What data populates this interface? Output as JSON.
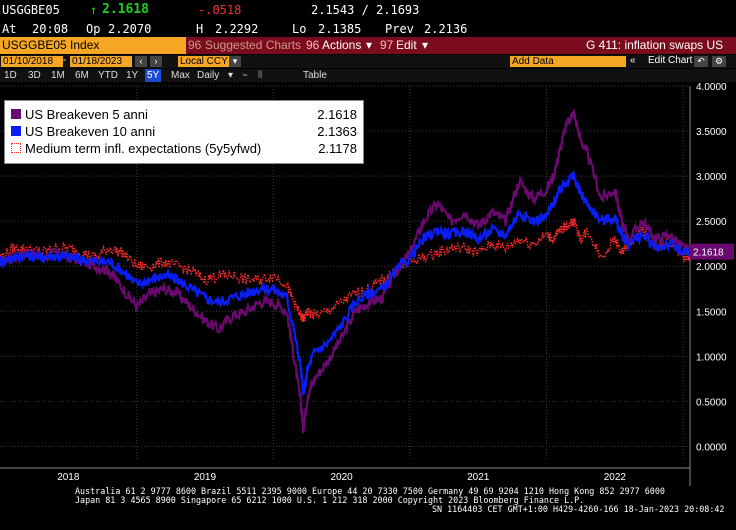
{
  "quote": {
    "ticker": "USGGBE05",
    "arrow": "↑",
    "last": "2.1618",
    "change": "-.0518",
    "bid_ask": "2.1543 / 2.1693",
    "time_label": "At",
    "time": "20:08",
    "open_label": "Op",
    "open": "2.2070",
    "high_label": "H",
    "high": "2.2292",
    "low_label": "Lo",
    "low": "2.1385",
    "prev_label": "Prev",
    "prev": "2.2136"
  },
  "index_bar": {
    "security": "USGGBE05 Index",
    "suggested": "Suggested Charts",
    "suggested_num": "96",
    "actions": "Actions",
    "actions_num": "96",
    "edit": "Edit",
    "edit_num": "97",
    "title": "G 411: inflation swaps US"
  },
  "date_bar": {
    "start": "01/10/2018",
    "end": "01/18/2023",
    "currency": "Local CCY",
    "add_data": "Add Data",
    "edit_chart": "Edit Chart"
  },
  "period_bar": {
    "periods": [
      "1D",
      "3D",
      "1M",
      "6M",
      "YTD",
      "1Y",
      "5Y",
      "Max"
    ],
    "selected": "5Y",
    "frequency": "Daily",
    "table": "Table"
  },
  "colors": {
    "s1": "#6a0a70",
    "s2": "#0b1df5",
    "s3": "#ff2a2a",
    "accent_orange": "#f5a623",
    "brand_red": "#7b0c1e"
  },
  "legend": {
    "items": [
      {
        "name": "US Breakeven 5 anni",
        "value": "2.1618"
      },
      {
        "name": "US Breakeven 10 anni",
        "value": "2.1363"
      },
      {
        "name": "Medium term infl. expectations (5y5yfwd)",
        "value": "2.1178"
      }
    ]
  },
  "last_price_tag": "2.1618",
  "footer": {
    "line1": "Australia 61 2 9777 8600 Brazil 5511 2395 9000 Europe 44 20 7330 7500 Germany 49 69 9204 1210 Hong Kong 852 2977 6000",
    "line2": "Japan 81 3 4565 8900        Singapore 65 6212 1000        U.S. 1 212 318 2000                Copyright 2023 Bloomberg Finance L.P.",
    "line3": "SN 1164403 CET  GMT+1:00 H429-4260-166 18-Jan-2023 20:08:42"
  },
  "chart_data": {
    "type": "line",
    "x_axis_labels": [
      "2018",
      "2019",
      "2020",
      "2021",
      "2022"
    ],
    "y_ticks": [
      "4.0000",
      "3.5000",
      "3.0000",
      "2.5000",
      "2.0000",
      "1.5000",
      "1.0000",
      "0.5000",
      "0.0000"
    ],
    "ylim": [
      -0.15,
      4.0
    ],
    "xlim": [
      2018.0,
      2023.05
    ],
    "series": [
      {
        "name": "US Breakeven 5 anni",
        "style": "solid",
        "x": [
          2018.0,
          2018.1,
          2018.2,
          2018.3,
          2018.4,
          2018.5,
          2018.6,
          2018.7,
          2018.8,
          2018.9,
          2019.0,
          2019.1,
          2019.2,
          2019.3,
          2019.4,
          2019.5,
          2019.6,
          2019.7,
          2019.8,
          2019.9,
          2020.0,
          2020.1,
          2020.15,
          2020.2,
          2020.22,
          2020.25,
          2020.3,
          2020.4,
          2020.5,
          2020.6,
          2020.7,
          2020.8,
          2020.9,
          2021.0,
          2021.1,
          2021.2,
          2021.3,
          2021.4,
          2021.5,
          2021.6,
          2021.7,
          2021.8,
          2021.9,
          2022.0,
          2022.05,
          2022.1,
          2022.15,
          2022.2,
          2022.25,
          2022.3,
          2022.4,
          2022.5,
          2022.55,
          2022.6,
          2022.7,
          2022.8,
          2022.9,
          2023.0,
          2023.05
        ],
        "y": [
          2.05,
          2.1,
          2.15,
          2.1,
          2.15,
          2.1,
          2.05,
          2.0,
          1.95,
          1.75,
          1.55,
          1.7,
          1.75,
          1.7,
          1.55,
          1.4,
          1.3,
          1.45,
          1.5,
          1.6,
          1.6,
          1.5,
          1.0,
          0.5,
          0.2,
          0.55,
          0.75,
          0.95,
          1.2,
          1.5,
          1.6,
          1.65,
          1.95,
          2.15,
          2.5,
          2.7,
          2.5,
          2.6,
          2.45,
          2.6,
          2.5,
          2.95,
          2.75,
          2.85,
          3.0,
          3.3,
          3.6,
          3.7,
          3.4,
          3.25,
          2.75,
          2.85,
          2.5,
          2.3,
          2.5,
          2.3,
          2.35,
          2.2,
          2.16
        ]
      },
      {
        "name": "US Breakeven 10 anni",
        "style": "solid",
        "x": [
          2018.0,
          2018.1,
          2018.2,
          2018.3,
          2018.4,
          2018.5,
          2018.6,
          2018.7,
          2018.8,
          2018.9,
          2019.0,
          2019.1,
          2019.2,
          2019.3,
          2019.4,
          2019.5,
          2019.6,
          2019.7,
          2019.8,
          2019.9,
          2020.0,
          2020.1,
          2020.15,
          2020.2,
          2020.22,
          2020.25,
          2020.3,
          2020.4,
          2020.5,
          2020.6,
          2020.7,
          2020.8,
          2020.9,
          2021.0,
          2021.1,
          2021.2,
          2021.3,
          2021.4,
          2021.5,
          2021.6,
          2021.7,
          2021.8,
          2021.9,
          2022.0,
          2022.05,
          2022.1,
          2022.15,
          2022.2,
          2022.25,
          2022.3,
          2022.4,
          2022.5,
          2022.55,
          2022.6,
          2022.7,
          2022.8,
          2022.9,
          2023.0,
          2023.05
        ],
        "y": [
          2.05,
          2.1,
          2.12,
          2.1,
          2.12,
          2.1,
          2.08,
          2.05,
          2.05,
          1.95,
          1.8,
          1.85,
          1.9,
          1.85,
          1.75,
          1.65,
          1.6,
          1.65,
          1.7,
          1.75,
          1.75,
          1.65,
          1.3,
          0.9,
          0.55,
          0.85,
          1.05,
          1.15,
          1.35,
          1.6,
          1.7,
          1.75,
          1.95,
          2.1,
          2.3,
          2.4,
          2.35,
          2.4,
          2.3,
          2.4,
          2.35,
          2.6,
          2.5,
          2.55,
          2.7,
          2.85,
          2.95,
          3.0,
          2.8,
          2.7,
          2.5,
          2.55,
          2.35,
          2.25,
          2.35,
          2.2,
          2.25,
          2.15,
          2.14
        ]
      },
      {
        "name": "Medium term infl. expectations (5y5yfwd)",
        "style": "dotted",
        "x": [
          2018.0,
          2018.1,
          2018.2,
          2018.3,
          2018.4,
          2018.5,
          2018.6,
          2018.7,
          2018.8,
          2018.9,
          2019.0,
          2019.1,
          2019.2,
          2019.3,
          2019.4,
          2019.5,
          2019.6,
          2019.7,
          2019.8,
          2019.9,
          2020.0,
          2020.1,
          2020.15,
          2020.2,
          2020.22,
          2020.25,
          2020.3,
          2020.4,
          2020.5,
          2020.6,
          2020.7,
          2020.8,
          2020.9,
          2021.0,
          2021.1,
          2021.2,
          2021.3,
          2021.4,
          2021.5,
          2021.6,
          2021.7,
          2021.8,
          2021.9,
          2022.0,
          2022.05,
          2022.1,
          2022.15,
          2022.2,
          2022.25,
          2022.3,
          2022.4,
          2022.5,
          2022.55,
          2022.6,
          2022.7,
          2022.8,
          2022.9,
          2023.0,
          2023.05
        ],
        "y": [
          2.1,
          2.2,
          2.2,
          2.15,
          2.2,
          2.2,
          2.15,
          2.1,
          2.2,
          2.15,
          2.0,
          2.0,
          2.05,
          2.0,
          1.95,
          1.85,
          1.9,
          1.9,
          1.85,
          1.85,
          1.9,
          1.8,
          1.6,
          1.45,
          1.4,
          1.5,
          1.45,
          1.5,
          1.6,
          1.7,
          1.75,
          1.85,
          1.95,
          2.05,
          2.1,
          2.15,
          2.2,
          2.2,
          2.15,
          2.25,
          2.2,
          2.3,
          2.25,
          2.35,
          2.3,
          2.4,
          2.45,
          2.5,
          2.3,
          2.4,
          2.1,
          2.3,
          2.15,
          2.25,
          2.4,
          2.2,
          2.3,
          2.1,
          2.12
        ]
      }
    ]
  }
}
